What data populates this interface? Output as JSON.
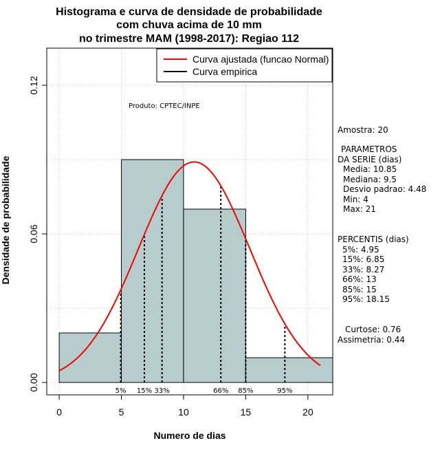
{
  "chart_data": {
    "type": "bar",
    "title_lines": [
      "Histograma e curva de densidade de probabilidade",
      "com chuva acima de 10 mm",
      "no trimestre MAM (1998-2017): Regiao 112"
    ],
    "xlabel": "Numero de dias",
    "ylabel": "Densidade de probabilidade",
    "xlim": [
      -1,
      22
    ],
    "ylim": [
      -0.005,
      0.135
    ],
    "x_ticks": [
      0,
      5,
      10,
      15,
      20
    ],
    "y_ticks": [
      0.0,
      0.06,
      0.12
    ],
    "y_tick_labels": [
      "0.00",
      "0.06",
      "0.12"
    ],
    "grid": true,
    "bins": [
      {
        "start": 0,
        "end": 5,
        "density": 0.02
      },
      {
        "start": 5,
        "end": 10,
        "density": 0.09
      },
      {
        "start": 10,
        "end": 15,
        "density": 0.07
      },
      {
        "start": 15,
        "end": 22,
        "density": 0.01
      }
    ],
    "bar_color": "#b7cdcd",
    "normal_curve": {
      "mean": 10.85,
      "sd": 4.48,
      "x_range": [
        0,
        21
      ],
      "color": "#ff0000"
    },
    "percentile_markers": [
      {
        "label": "5%",
        "x": 4.95
      },
      {
        "label": "15%",
        "x": 6.85
      },
      {
        "label": "33%",
        "x": 8.27
      },
      {
        "label": "66%",
        "x": 13
      },
      {
        "label": "85%",
        "x": 15
      },
      {
        "label": "95%",
        "x": 18.15
      }
    ],
    "legend": {
      "position": "top-right",
      "entries": [
        {
          "label": "Curva ajustada (funcao Normal)",
          "color": "#ff0000"
        },
        {
          "label": "Curva empirica",
          "color": "#000000"
        }
      ]
    },
    "credit": "Produto: CPTEC/INPE"
  },
  "side_panel": {
    "amostra": "Amostra: 20",
    "param_title_1": "PARAMETROS",
    "param_title_2": "DA SERIE (dias)",
    "params": [
      "Media: 10.85",
      "Mediana: 9.5",
      "Desvio padrao: 4.48",
      "Min: 4",
      "Max: 21"
    ],
    "perc_title": "PERCENTIS (dias)",
    "percentiles": [
      "5%: 4.95",
      "15%: 6.85",
      "33%: 8.27",
      "66%: 13",
      "85%: 15",
      "95%: 18.15"
    ],
    "curtose": "Curtose: 0.76",
    "assimetria": "Assimetria: 0.44"
  }
}
